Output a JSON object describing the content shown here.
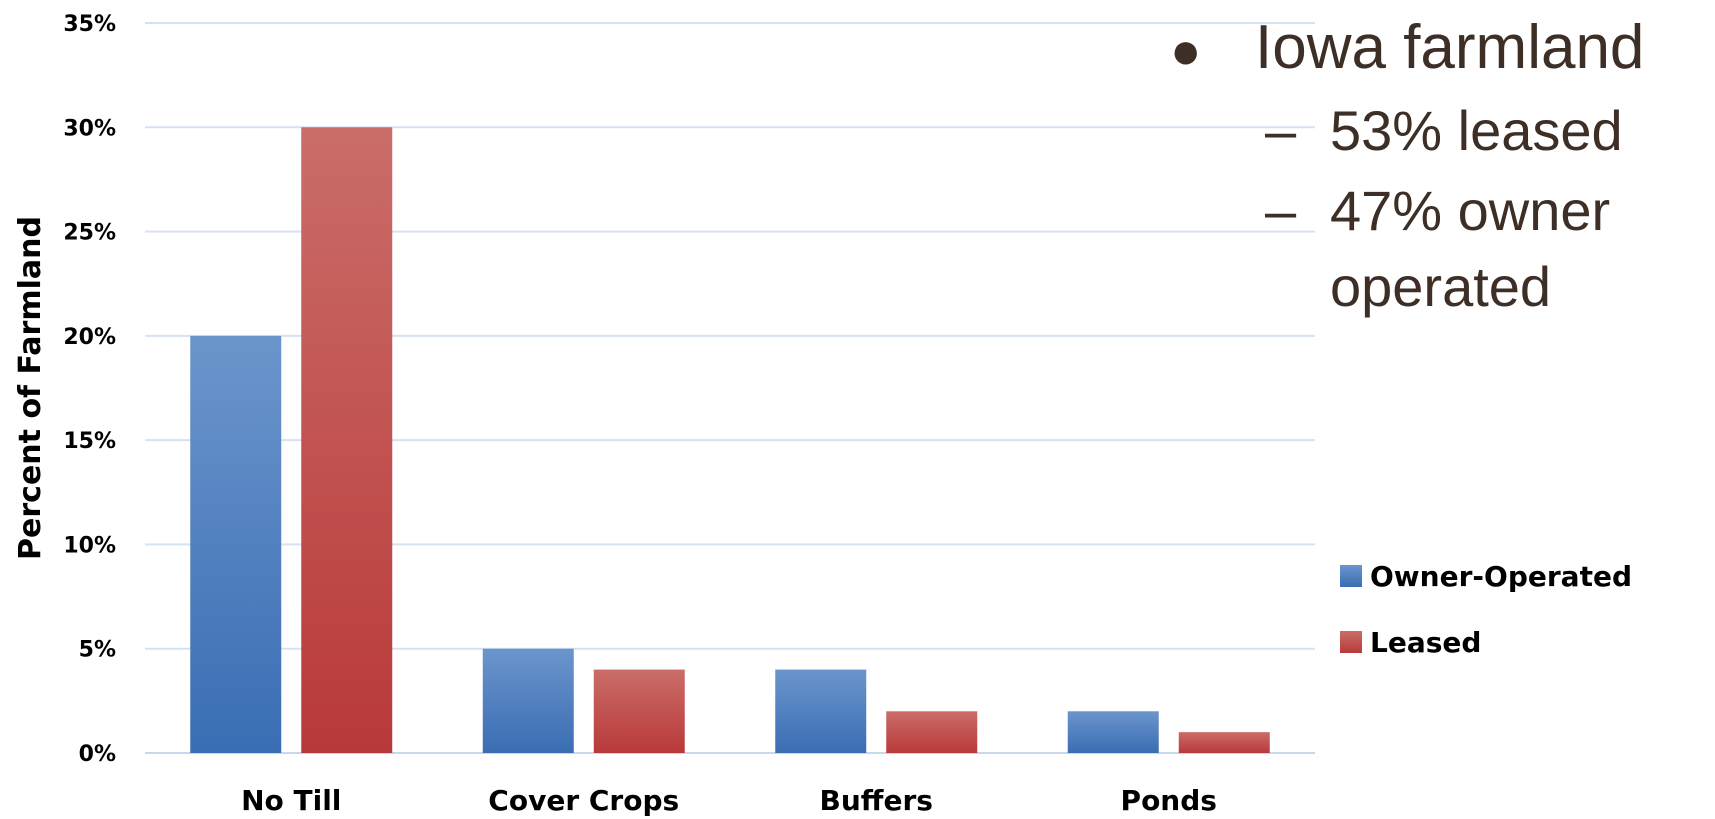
{
  "chart_data": {
    "type": "bar",
    "categories": [
      "No Till",
      "Cover Crops",
      "Buffers",
      "Ponds"
    ],
    "series": [
      {
        "name": "Owner-Operated",
        "values": [
          20,
          5,
          4,
          2
        ]
      },
      {
        "name": "Leased",
        "values": [
          30,
          4,
          2,
          1
        ]
      }
    ],
    "ylabel": "Percent of Farmland",
    "ylim": [
      0,
      35
    ],
    "yticks": [
      "0%",
      "5%",
      "10%",
      "15%",
      "20%",
      "25%",
      "30%",
      "35%"
    ],
    "grid": true,
    "legend_position": "right",
    "colors": {
      "Owner-Operated": "#3b6fb6",
      "Leased": "#c0403f"
    }
  },
  "notes": {
    "bullet": "Iowa farmland",
    "items": [
      "53% leased",
      "47% owner operated"
    ]
  }
}
